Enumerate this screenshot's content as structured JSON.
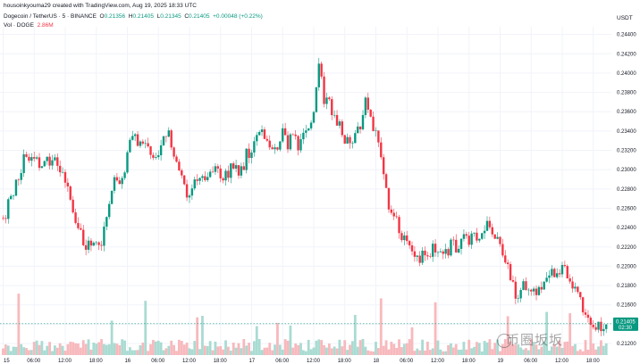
{
  "header": {
    "credit": "housoinkyouma29 created with TradingView.com, Aug 19, 2025 18:33 UTC",
    "symbol": "Dogecoin / TetherUS · 5 · BINANCE",
    "open_label": "O",
    "open": "0.21356",
    "high_label": "H",
    "high": "0.21405",
    "low_label": "L",
    "low": "0.21345",
    "close_label": "C",
    "close": "0.21405",
    "change": "+0.00048 (+0.22%)",
    "volume_label": "Vol · DOGE",
    "volume": "2.86M"
  },
  "axis": {
    "unit": "USDT",
    "price_tag": "0.21405",
    "price_tag_time": "02:30"
  },
  "watermark": "币圈坂坂",
  "colors": {
    "up": "#089981",
    "down": "#f23645",
    "grid": "#f0f3fa",
    "vol_up": "#a9dbd2",
    "vol_down": "#f7b9bd"
  },
  "chart_data": {
    "type": "candlestick",
    "ylim": [
      0.2108,
      0.2448
    ],
    "y_ticks": [
      "0.21200",
      "0.21400",
      "0.21600",
      "0.21800",
      "0.22000",
      "0.22200",
      "0.22400",
      "0.22600",
      "0.22800",
      "0.23000",
      "0.23200",
      "0.23400",
      "0.23600",
      "0.23800",
      "0.24000",
      "0.24200",
      "0.24400"
    ],
    "x_ticks": [
      "15",
      "06:00",
      "12:00",
      "18:00",
      "16",
      "06:00",
      "12:00",
      "18:00",
      "17",
      "06:00",
      "12:00",
      "18:00",
      "18",
      "06:00",
      "12:00",
      "18:00",
      "19",
      "06:00",
      "12:00",
      "18:00"
    ],
    "x_tick_hours": [
      0,
      6,
      12,
      18,
      24,
      30,
      36,
      42,
      48,
      54,
      60,
      66,
      72,
      78,
      84,
      90,
      96,
      102,
      108,
      114
    ],
    "x_range_hours": [
      -0.6,
      117.5
    ],
    "price_path": [
      [
        0,
        0.225
      ],
      [
        1,
        0.2262
      ],
      [
        2,
        0.2278
      ],
      [
        3,
        0.229
      ],
      [
        4,
        0.2318
      ],
      [
        5,
        0.2308
      ],
      [
        6,
        0.2318
      ],
      [
        7,
        0.2303
      ],
      [
        8,
        0.2312
      ],
      [
        9,
        0.2306
      ],
      [
        10,
        0.2312
      ],
      [
        11,
        0.23
      ],
      [
        12,
        0.229
      ],
      [
        13,
        0.227
      ],
      [
        14,
        0.2245
      ],
      [
        15,
        0.223
      ],
      [
        16,
        0.2218
      ],
      [
        17,
        0.2223
      ],
      [
        18,
        0.2218
      ],
      [
        19,
        0.2223
      ],
      [
        20,
        0.2255
      ],
      [
        21,
        0.2282
      ],
      [
        22,
        0.2292
      ],
      [
        23,
        0.2288
      ],
      [
        24,
        0.2316
      ],
      [
        25,
        0.2334
      ],
      [
        26,
        0.2328
      ],
      [
        27,
        0.233
      ],
      [
        28,
        0.2322
      ],
      [
        29,
        0.231
      ],
      [
        30,
        0.2318
      ],
      [
        31,
        0.2328
      ],
      [
        32,
        0.2335
      ],
      [
        33,
        0.2312
      ],
      [
        34,
        0.2295
      ],
      [
        35,
        0.2282
      ],
      [
        36,
        0.2275
      ],
      [
        37,
        0.229
      ],
      [
        38,
        0.2295
      ],
      [
        39,
        0.229
      ],
      [
        40,
        0.2298
      ],
      [
        41,
        0.2298
      ],
      [
        42,
        0.2296
      ],
      [
        43,
        0.2292
      ],
      [
        44,
        0.2302
      ],
      [
        45,
        0.23
      ],
      [
        46,
        0.23
      ],
      [
        47,
        0.2315
      ],
      [
        48,
        0.2325
      ],
      [
        49,
        0.2335
      ],
      [
        50,
        0.234
      ],
      [
        51,
        0.233
      ],
      [
        52,
        0.2328
      ],
      [
        53,
        0.2325
      ],
      [
        54,
        0.2335
      ],
      [
        55,
        0.2328
      ],
      [
        56,
        0.234
      ],
      [
        57,
        0.2328
      ],
      [
        58,
        0.234
      ],
      [
        59,
        0.235
      ],
      [
        60,
        0.2362
      ],
      [
        61,
        0.241
      ],
      [
        62,
        0.2376
      ],
      [
        63,
        0.237
      ],
      [
        64,
        0.2358
      ],
      [
        65,
        0.2345
      ],
      [
        66,
        0.233
      ],
      [
        67,
        0.2322
      ],
      [
        68,
        0.233
      ],
      [
        69,
        0.2345
      ],
      [
        70,
        0.2375
      ],
      [
        71,
        0.235
      ],
      [
        72,
        0.234
      ],
      [
        73,
        0.231
      ],
      [
        74,
        0.228
      ],
      [
        75,
        0.2252
      ],
      [
        76,
        0.2245
      ],
      [
        77,
        0.2235
      ],
      [
        78,
        0.2222
      ],
      [
        79,
        0.2218
      ],
      [
        80,
        0.2213
      ],
      [
        81,
        0.221
      ],
      [
        82,
        0.2212
      ],
      [
        83,
        0.2222
      ],
      [
        84,
        0.2215
      ],
      [
        85,
        0.222
      ],
      [
        86,
        0.2218
      ],
      [
        87,
        0.2226
      ],
      [
        88,
        0.2218
      ],
      [
        89,
        0.2228
      ],
      [
        90,
        0.223
      ],
      [
        91,
        0.2236
      ],
      [
        92,
        0.2228
      ],
      [
        93,
        0.2238
      ],
      [
        94,
        0.2245
      ],
      [
        95,
        0.223
      ],
      [
        96,
        0.2218
      ],
      [
        97,
        0.221
      ],
      [
        98,
        0.219
      ],
      [
        99,
        0.2165
      ],
      [
        100,
        0.2175
      ],
      [
        101,
        0.218
      ],
      [
        102,
        0.2178
      ],
      [
        103,
        0.2168
      ],
      [
        104,
        0.2182
      ],
      [
        105,
        0.2186
      ],
      [
        106,
        0.219
      ],
      [
        107,
        0.2188
      ],
      [
        108,
        0.22
      ],
      [
        109,
        0.2192
      ],
      [
        110,
        0.2182
      ],
      [
        111,
        0.2168
      ],
      [
        112,
        0.2155
      ],
      [
        113,
        0.2142
      ],
      [
        114,
        0.213
      ],
      [
        115,
        0.214
      ],
      [
        116,
        0.2138
      ],
      [
        117,
        0.21405
      ]
    ]
  }
}
